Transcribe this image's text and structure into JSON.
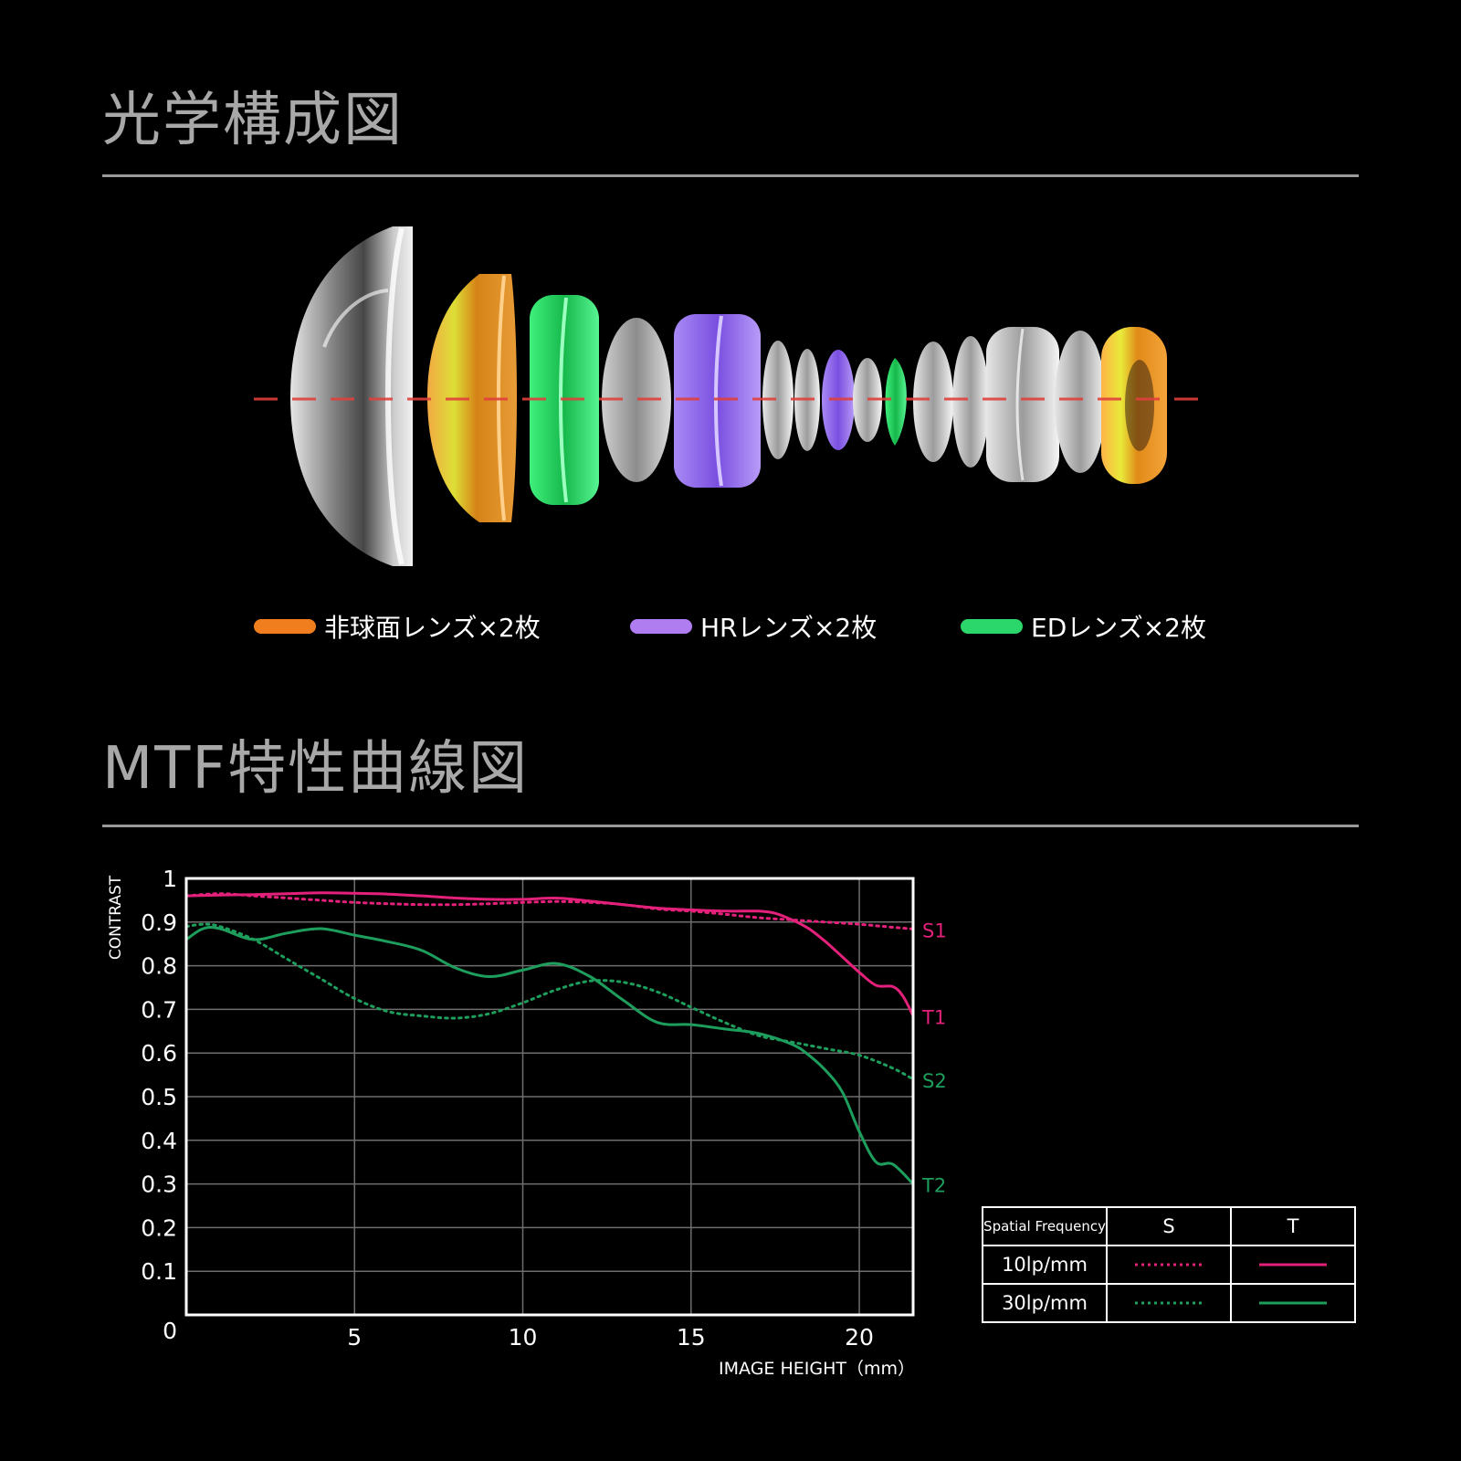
{
  "optics": {
    "title": "光学構成図",
    "legend": [
      {
        "label": "非球面レンズ×2枚",
        "color": "#f07d1e"
      },
      {
        "label": "HRレンズ×2枚",
        "color": "#b07df0"
      },
      {
        "label": "EDレンズ×2枚",
        "color": "#2bd66a"
      }
    ],
    "axis_color": "#e0403c"
  },
  "mtf": {
    "title": "MTF特性曲線図",
    "table": {
      "header": [
        "Spatial Frequency",
        "S",
        "T"
      ],
      "rows": [
        {
          "label": "10lp/mm"
        },
        {
          "label": "30lp/mm"
        }
      ]
    }
  },
  "chart_data": {
    "type": "line",
    "ylabel": "CONTRAST",
    "xlabel": "IMAGE HEIGHT（mm）",
    "xlim": [
      0,
      21.6
    ],
    "ylim": [
      0,
      1
    ],
    "x_ticks": [
      "5",
      "10",
      "15",
      "20"
    ],
    "x_tick_values": [
      5,
      10,
      15,
      20
    ],
    "y_ticks": [
      "1",
      "0.9",
      "0.8",
      "0.7",
      "0.6",
      "0.5",
      "0.4",
      "0.3",
      "0.2",
      "0.1",
      "0"
    ],
    "y_tick_values": [
      1,
      0.9,
      0.8,
      0.7,
      0.6,
      0.5,
      0.4,
      0.3,
      0.2,
      0.1,
      0
    ],
    "grid": true,
    "series": [
      {
        "name": "S1",
        "color": "#e3207a",
        "dash": "dotted",
        "x": [
          0,
          1,
          2,
          3,
          4,
          5,
          6,
          7,
          8,
          9,
          10,
          11,
          12,
          13,
          14,
          15,
          16,
          17,
          18,
          19,
          20,
          21,
          21.6
        ],
        "y": [
          0.96,
          0.965,
          0.96,
          0.955,
          0.95,
          0.945,
          0.942,
          0.94,
          0.94,
          0.942,
          0.945,
          0.947,
          0.945,
          0.94,
          0.93,
          0.925,
          0.918,
          0.91,
          0.905,
          0.9,
          0.895,
          0.888,
          0.884
        ]
      },
      {
        "name": "T1",
        "color": "#e3207a",
        "dash": "solid",
        "x": [
          0,
          1,
          2,
          3,
          4,
          5,
          6,
          7,
          8,
          9,
          10,
          11,
          12,
          13,
          14,
          15,
          16,
          17,
          17.5,
          18,
          18.5,
          19,
          19.5,
          20,
          20.5,
          21,
          21.3,
          21.6
        ],
        "y": [
          0.96,
          0.962,
          0.963,
          0.965,
          0.967,
          0.966,
          0.964,
          0.96,
          0.955,
          0.952,
          0.952,
          0.955,
          0.948,
          0.94,
          0.932,
          0.928,
          0.925,
          0.925,
          0.92,
          0.905,
          0.885,
          0.855,
          0.82,
          0.785,
          0.755,
          0.752,
          0.73,
          0.685
        ]
      },
      {
        "name": "S2",
        "color": "#1e9e5c",
        "dash": "dotted",
        "x": [
          0,
          0.5,
          1,
          2,
          3,
          4,
          5,
          6,
          7,
          8,
          9,
          10,
          11,
          12,
          13,
          14,
          15,
          16,
          17,
          18,
          19,
          20,
          21,
          21.6
        ],
        "y": [
          0.89,
          0.895,
          0.89,
          0.86,
          0.815,
          0.77,
          0.725,
          0.695,
          0.685,
          0.68,
          0.69,
          0.715,
          0.745,
          0.765,
          0.762,
          0.74,
          0.705,
          0.67,
          0.64,
          0.625,
          0.61,
          0.595,
          0.565,
          0.54
        ]
      },
      {
        "name": "T2",
        "color": "#1e9e5c",
        "dash": "solid",
        "x": [
          0,
          0.5,
          1,
          2,
          3,
          4,
          5,
          6,
          7,
          8,
          9,
          10,
          11,
          12,
          13,
          14,
          15,
          16,
          17,
          18,
          18.5,
          19,
          19.5,
          20,
          20.5,
          21,
          21.6
        ],
        "y": [
          0.86,
          0.885,
          0.885,
          0.86,
          0.875,
          0.885,
          0.87,
          0.855,
          0.835,
          0.795,
          0.775,
          0.79,
          0.805,
          0.775,
          0.72,
          0.67,
          0.665,
          0.655,
          0.645,
          0.62,
          0.595,
          0.56,
          0.51,
          0.42,
          0.35,
          0.345,
          0.3
        ]
      }
    ]
  }
}
